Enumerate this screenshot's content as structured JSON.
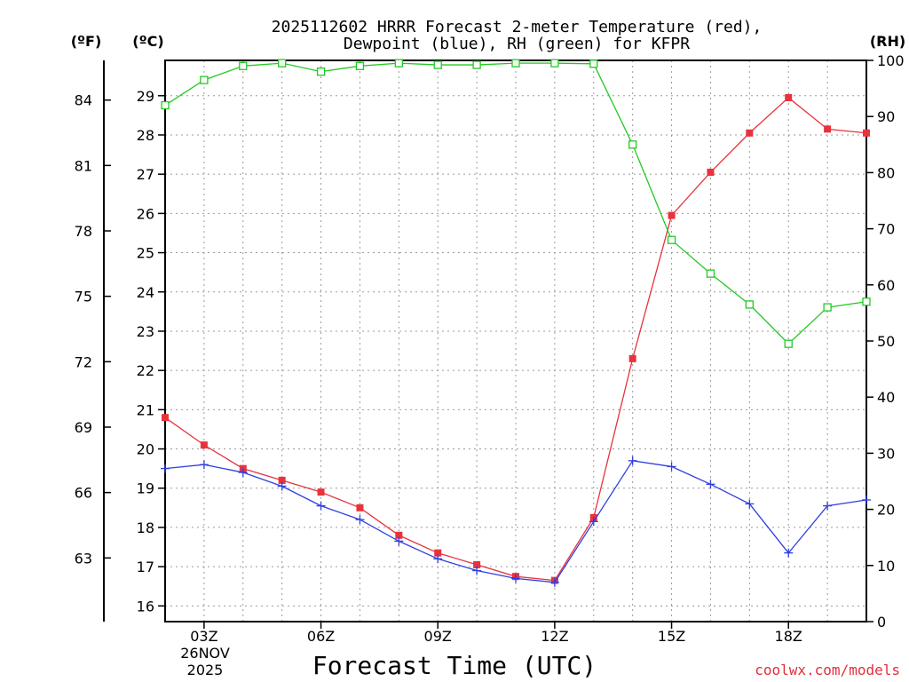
{
  "chart_data": {
    "type": "line",
    "title_line1": "2025112602 HRRR Forecast 2-meter Temperature (red),",
    "title_line2": "Dewpoint (blue), RH (green) for KFPR",
    "xlabel": "Forecast Time (UTC)",
    "date_line1": "26NOV",
    "date_line2": "2025",
    "credit": "coolwx.com/models",
    "unit_f": "(ºF)",
    "unit_c": "(ºC)",
    "unit_rh": "(RH)",
    "x_hours": [
      2,
      3,
      4,
      5,
      6,
      7,
      8,
      9,
      10,
      11,
      12,
      13,
      14,
      15,
      16,
      17,
      18,
      19,
      20
    ],
    "x_range": [
      2,
      20
    ],
    "x_ticks": [
      {
        "hour": 3,
        "label": "03Z"
      },
      {
        "hour": 6,
        "label": "06Z"
      },
      {
        "hour": 9,
        "label": "09Z"
      },
      {
        "hour": 12,
        "label": "12Z"
      },
      {
        "hour": 15,
        "label": "15Z"
      },
      {
        "hour": 18,
        "label": "18Z"
      }
    ],
    "ylim_c": [
      15.6,
      29.9
    ],
    "y_ticks_c": [
      16,
      17,
      18,
      19,
      20,
      21,
      22,
      23,
      24,
      25,
      26,
      27,
      28,
      29
    ],
    "y_ticks_f": [
      63,
      66,
      69,
      72,
      75,
      78,
      81,
      84
    ],
    "ylim_rh": [
      0,
      100
    ],
    "y_ticks_rh": [
      0,
      10,
      20,
      30,
      40,
      50,
      60,
      70,
      80,
      90,
      100
    ],
    "series": [
      {
        "name": "Temperature",
        "unit": "C",
        "color": "#e8323c",
        "marker": "filled-square",
        "values": [
          20.8,
          20.1,
          19.5,
          19.2,
          18.9,
          18.5,
          17.8,
          17.35,
          17.05,
          16.75,
          16.65,
          18.25,
          22.3,
          25.95,
          27.05,
          28.05,
          28.95,
          28.15,
          28.05
        ]
      },
      {
        "name": "Dewpoint",
        "unit": "C",
        "color": "#2e3fe0",
        "marker": "plus",
        "values": [
          19.5,
          19.6,
          19.4,
          19.05,
          18.55,
          18.2,
          17.65,
          17.2,
          16.9,
          16.7,
          16.6,
          18.15,
          19.7,
          19.55,
          19.1,
          18.6,
          17.35,
          18.55,
          18.7
        ]
      },
      {
        "name": "RH",
        "unit": "%",
        "color": "#22c922",
        "marker": "open-square",
        "values": [
          92,
          96.5,
          99,
          99.5,
          98,
          99,
          99.5,
          99.2,
          99.2,
          99.5,
          99.5,
          99.4,
          85,
          68,
          62,
          56.5,
          49.5,
          56,
          57
        ]
      }
    ]
  }
}
